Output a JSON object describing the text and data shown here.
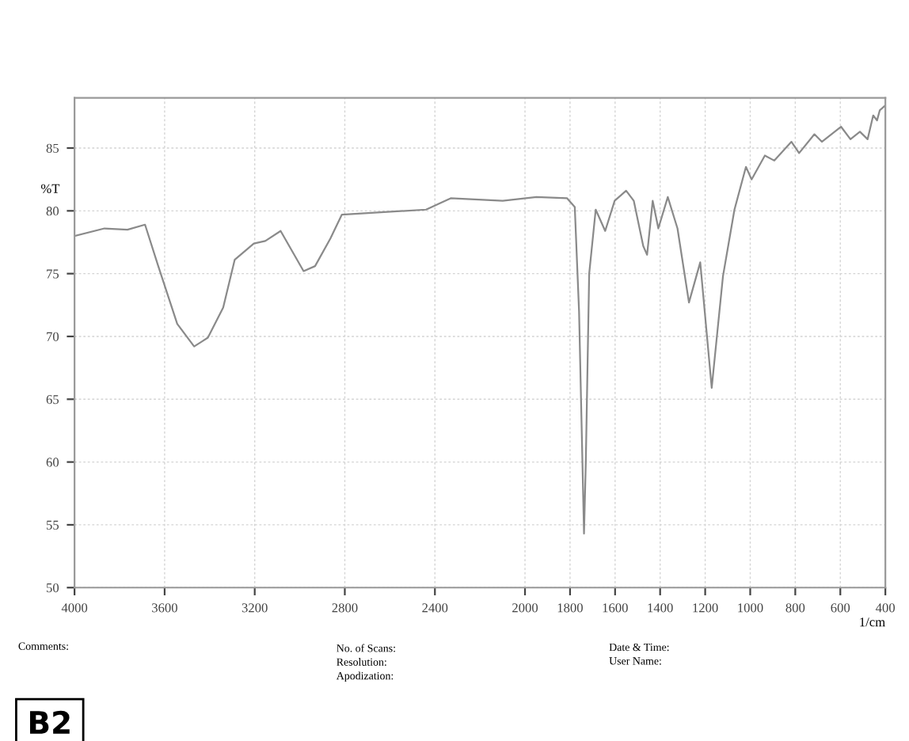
{
  "chart_data": {
    "type": "line",
    "xlabel": "1/cm",
    "ylabel": "%T",
    "x": [
      4000,
      3867,
      3765,
      3687,
      3630,
      3544,
      3469,
      3408,
      3340,
      3289,
      3204,
      3153,
      3085,
      2983,
      2932,
      2864,
      2813,
      2439,
      2330,
      2099,
      1949,
      1813,
      1779,
      1760,
      1745,
      1738,
      1730,
      1715,
      1686,
      1644,
      1602,
      1551,
      1517,
      1475,
      1458,
      1433,
      1408,
      1366,
      1323,
      1272,
      1222,
      1171,
      1121,
      1070,
      1019,
      994,
      935,
      893,
      817,
      783,
      715,
      682,
      597,
      555,
      513,
      479,
      454,
      437,
      425,
      400
    ],
    "values": [
      78.0,
      78.6,
      78.5,
      78.9,
      75.7,
      71.0,
      69.2,
      69.9,
      72.3,
      76.1,
      77.4,
      77.6,
      78.4,
      75.2,
      75.6,
      77.8,
      79.7,
      80.1,
      81.0,
      80.8,
      81.1,
      81.0,
      80.3,
      72.0,
      60.0,
      54.3,
      60.0,
      75.0,
      80.1,
      78.4,
      80.8,
      81.6,
      80.8,
      77.2,
      76.5,
      80.8,
      78.6,
      81.1,
      78.6,
      72.7,
      75.9,
      65.9,
      74.8,
      80.1,
      83.5,
      82.5,
      84.4,
      84.0,
      85.5,
      84.6,
      86.1,
      85.5,
      86.7,
      85.7,
      86.3,
      85.7,
      87.6,
      87.2,
      88.0,
      88.4
    ],
    "color": "#8a8a8a",
    "xlim": [
      4000,
      400
    ],
    "xticks": [
      4000,
      3600,
      3200,
      2800,
      2400,
      2000,
      1800,
      1600,
      1400,
      1200,
      1000,
      800,
      600,
      400
    ],
    "ylim": [
      50,
      89
    ],
    "yticks": [
      50,
      55,
      60,
      65,
      70,
      75,
      80,
      85
    ],
    "grid": true,
    "line_style": "solid",
    "marker": "none",
    "legend": false,
    "annotations": [
      "Comments:",
      "No. of Scans:\nResolution:\nApodization:",
      "Date & Time:\nUser Name:",
      "B2"
    ]
  }
}
